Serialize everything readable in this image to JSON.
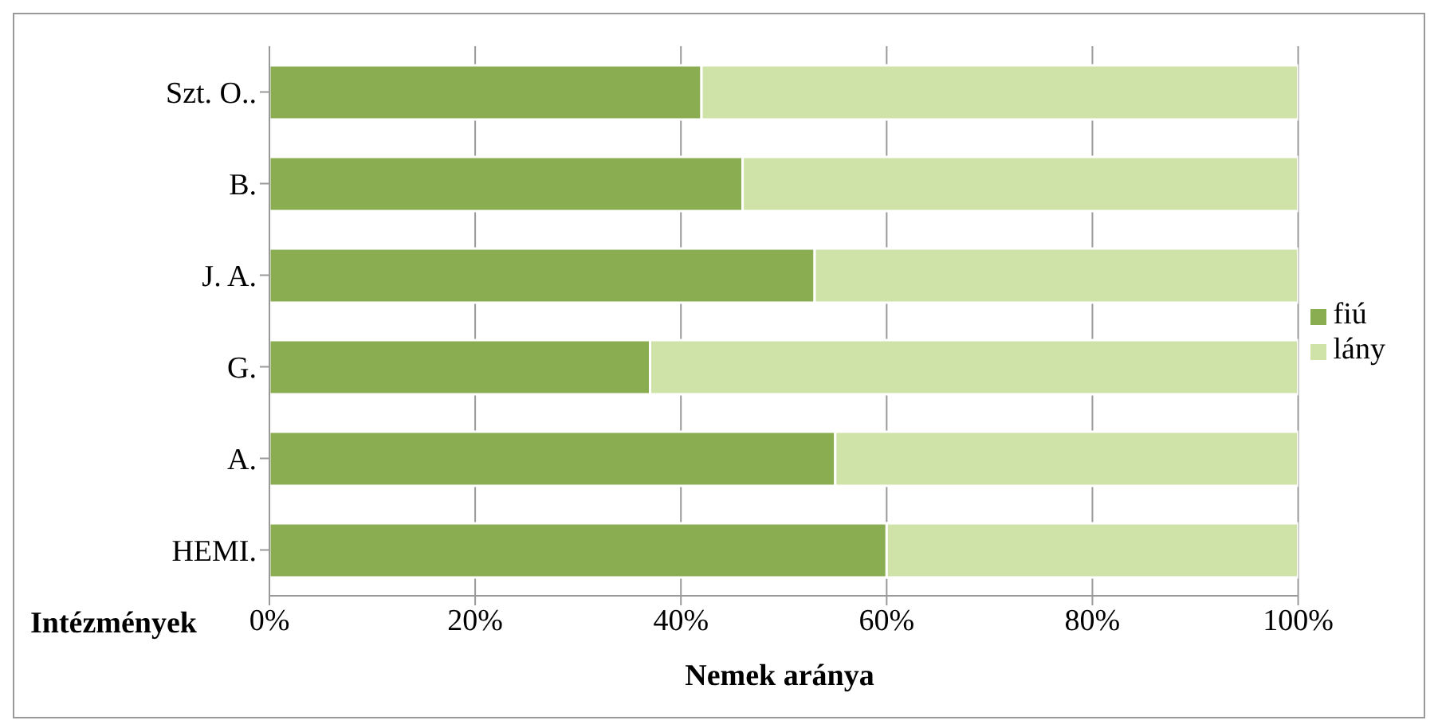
{
  "chart_data": {
    "type": "bar",
    "orientation": "horizontal",
    "stacked": true,
    "xlabel": "Nemek aránya",
    "ylabel": "Intézmények",
    "categories": [
      "Szt. O..",
      "B.",
      "J. A.",
      "G.",
      "A.",
      "HEMI."
    ],
    "series": [
      {
        "name": "fiú",
        "color": "#8aad52",
        "values": [
          42,
          46,
          53,
          37,
          55,
          60
        ]
      },
      {
        "name": "lány",
        "color": "#cfe2a8",
        "values": [
          58,
          54,
          47,
          63,
          45,
          40
        ]
      }
    ],
    "xlim": [
      0,
      100
    ],
    "xticks": [
      {
        "value": 0,
        "label": "0%"
      },
      {
        "value": 20,
        "label": "20%"
      },
      {
        "value": 40,
        "label": "40%"
      },
      {
        "value": 60,
        "label": "60%"
      },
      {
        "value": 80,
        "label": "80%"
      },
      {
        "value": 100,
        "label": "100%"
      }
    ],
    "grid": "x",
    "legend": "right"
  }
}
